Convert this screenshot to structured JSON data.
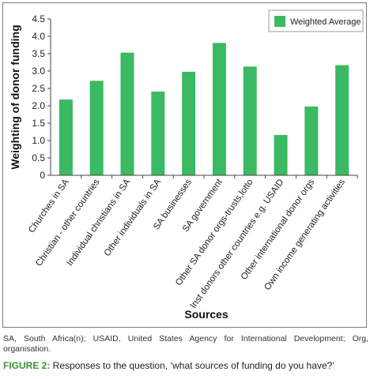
{
  "chart_data": {
    "type": "bar",
    "categories": [
      "Churches in SA",
      "Christian - other countries",
      "Individual christians in SA",
      "Other individuals in SA",
      "SA businesses",
      "SA government",
      "Other SA donor orgs-trusts,lotto",
      "Inst donors other countries e.g. USAID",
      "Other international donor orgs",
      "Own income generating activities"
    ],
    "series": [
      {
        "name": "Weighted Average",
        "values": [
          2.18,
          2.72,
          3.53,
          2.41,
          2.98,
          3.81,
          3.13,
          1.16,
          1.98,
          3.17
        ]
      }
    ],
    "title": "",
    "xlabel": "Sources",
    "ylabel": "Weighting of donor funding",
    "ylim": [
      0,
      4.5
    ],
    "yticks": [
      0,
      0.5,
      1.0,
      1.5,
      2.0,
      2.5,
      3.0,
      3.5,
      4.0,
      4.5
    ],
    "ytick_labels": [
      "0",
      "0.5",
      "1.0",
      "1.5",
      "2.0",
      "2.5",
      "3.0",
      "3.5",
      "4.0",
      "4.5"
    ],
    "grid": false,
    "legend": "top-right",
    "bar_color": "#3cb963"
  },
  "footnote": "SA, South Africa(n); USAID, United States Agency for International Development; Org, organisation.",
  "caption": {
    "label": "FIGURE 2:",
    "text": " Responses to the question, ‘what sources of funding do you have?’"
  }
}
